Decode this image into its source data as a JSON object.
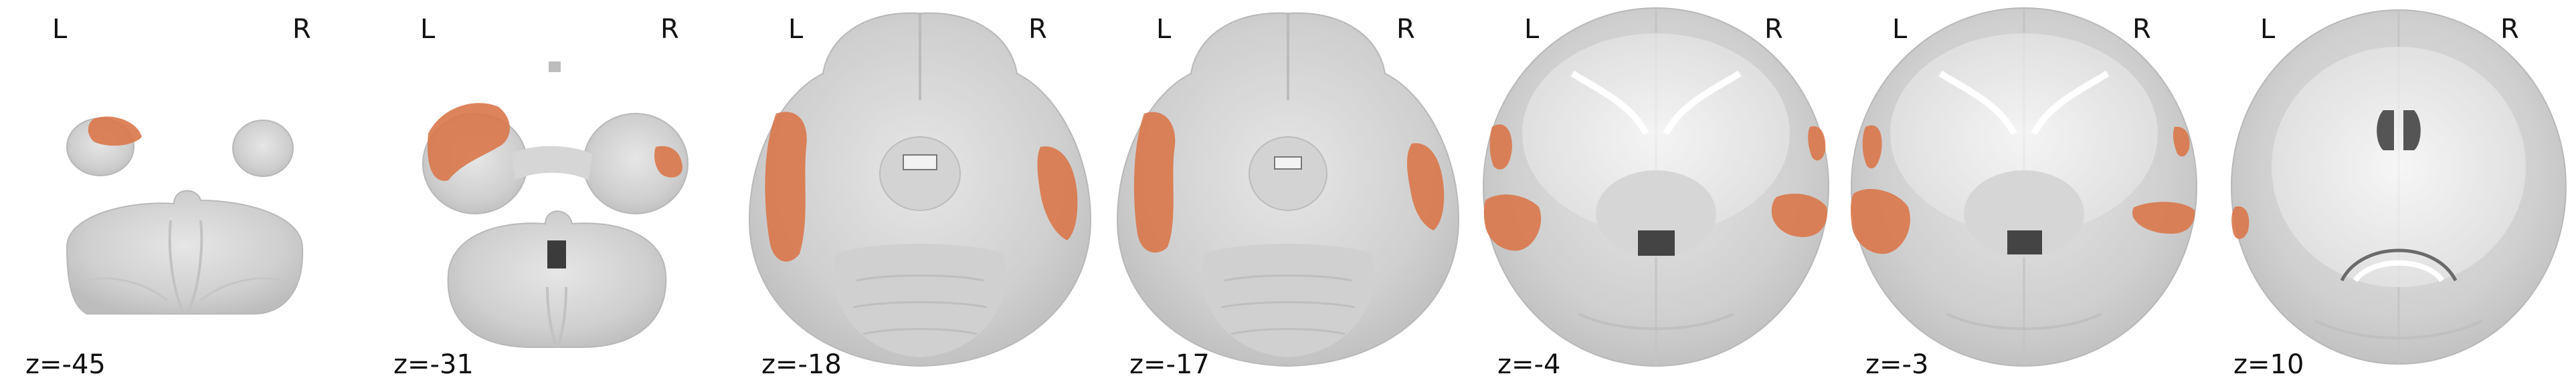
{
  "figure": {
    "background": "#ffffff",
    "overlay_color": "#d9774a",
    "slices": [
      {
        "left_label": "L",
        "right_label": "R",
        "z_label": "z=-45"
      },
      {
        "left_label": "L",
        "right_label": "R",
        "z_label": "z=-31"
      },
      {
        "left_label": "L",
        "right_label": "R",
        "z_label": "z=-18"
      },
      {
        "left_label": "L",
        "right_label": "R",
        "z_label": "z=-17"
      },
      {
        "left_label": "L",
        "right_label": "R",
        "z_label": "z=-4"
      },
      {
        "left_label": "L",
        "right_label": "R",
        "z_label": "z=-3"
      },
      {
        "left_label": "L",
        "right_label": "R",
        "z_label": "z=10"
      }
    ]
  }
}
